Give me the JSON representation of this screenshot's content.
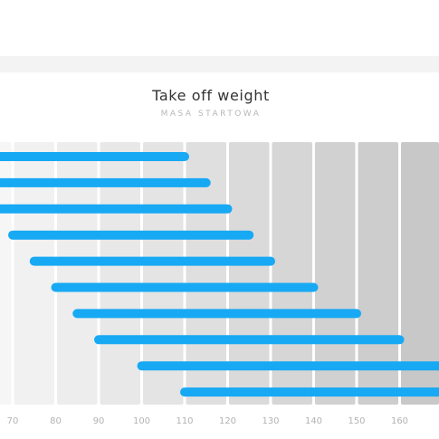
{
  "header": {
    "title": "Take off weight",
    "subtitle": "MASA STARTOWA"
  },
  "chart_data": {
    "type": "bar",
    "orientation": "horizontal-range",
    "title": "Take off weight",
    "subtitle": "MASA STARTOWA",
    "xlabel": "",
    "ylabel": "",
    "xlim": [
      65,
      170
    ],
    "x_ticks": [
      70,
      80,
      90,
      100,
      110,
      120,
      130,
      140,
      150,
      160
    ],
    "grid": true,
    "bar_color": "#17a9f4",
    "ranges": [
      {
        "start": 63,
        "end": 110
      },
      {
        "start": 63,
        "end": 115
      },
      {
        "start": 63,
        "end": 120
      },
      {
        "start": 70,
        "end": 125
      },
      {
        "start": 75,
        "end": 130
      },
      {
        "start": 80,
        "end": 140
      },
      {
        "start": 85,
        "end": 150
      },
      {
        "start": 90,
        "end": 160
      },
      {
        "start": 100,
        "end": 171
      },
      {
        "start": 110,
        "end": 171
      }
    ]
  }
}
